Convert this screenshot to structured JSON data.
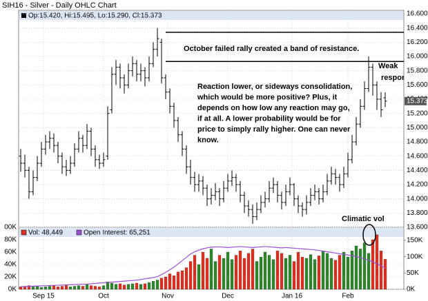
{
  "chart_data": {
    "type": "ohlc",
    "title": "SIH16 - Silver - Daily OHLC Chart",
    "price_legend": "Op:15.420, Hi:15.495, Lo:15.290, Cl:15.373",
    "volume_legend": "Vol: 48,449",
    "oi_legend": "Open Interest: 65,251",
    "last_price_label": "15.373",
    "xlim": [
      -0.5,
      92.5
    ],
    "xticks": [
      {
        "value": 5.5,
        "label": "Sep 15"
      },
      {
        "value": 20,
        "label": "Oct"
      },
      {
        "value": 35.5,
        "label": "Nov"
      },
      {
        "value": 50,
        "label": "Dec"
      },
      {
        "value": 65.5,
        "label": "Jan 16"
      },
      {
        "value": 79,
        "label": "Feb"
      }
    ],
    "ylim": [
      13.6,
      16.6
    ],
    "yticks": [
      {
        "value": 13.6,
        "label": "13.600"
      },
      {
        "value": 13.8,
        "label": "13.800"
      },
      {
        "value": 14.0,
        "label": "14.000"
      },
      {
        "value": 14.2,
        "label": "14.200"
      },
      {
        "value": 14.4,
        "label": "14.400"
      },
      {
        "value": 14.6,
        "label": "14.600"
      },
      {
        "value": 14.8,
        "label": "14.800"
      },
      {
        "value": 15.0,
        "label": "15.000"
      },
      {
        "value": 15.2,
        "label": "15.200"
      },
      {
        "value": 15.4,
        "label": "15.400"
      },
      {
        "value": 15.6,
        "label": "15.600"
      },
      {
        "value": 15.8,
        "label": "15.800"
      },
      {
        "value": 16.0,
        "label": "16.000"
      },
      {
        "value": 16.2,
        "label": "16.200"
      },
      {
        "value": 16.4,
        "label": "16.400"
      },
      {
        "value": 16.6,
        "label": "16.600"
      }
    ],
    "vol_ylim": [
      0,
      100000
    ],
    "vol_yticks": [
      {
        "value": 0,
        "label": "0K"
      },
      {
        "value": 20000,
        "label": "20K"
      },
      {
        "value": 40000,
        "label": "40K"
      },
      {
        "value": 60000,
        "label": "60K"
      },
      {
        "value": 80000,
        "label": "80K"
      },
      {
        "value": 100000,
        "label": "00K"
      }
    ],
    "y2lim": [
      0,
      190000
    ],
    "y2ticks": [
      {
        "value": 0,
        "label": "0K"
      },
      {
        "value": 50000,
        "label": "50K"
      },
      {
        "value": 100000,
        "label": "100K"
      },
      {
        "value": 150000,
        "label": "150K"
      }
    ],
    "bar_color": "#000000",
    "up_color": "#2a8a2a",
    "down_color": "#e03020",
    "oi_color": "#9b4fd6",
    "grid": true,
    "ohlc": [
      [
        14.6,
        14.7,
        14.38,
        14.5
      ],
      [
        14.5,
        14.62,
        14.3,
        14.4
      ],
      [
        14.4,
        14.45,
        14.0,
        14.1
      ],
      [
        14.1,
        14.4,
        14.05,
        14.3
      ],
      [
        14.3,
        14.6,
        14.25,
        14.5
      ],
      [
        14.5,
        14.8,
        14.45,
        14.7
      ],
      [
        14.7,
        14.9,
        14.62,
        14.8
      ],
      [
        14.8,
        14.95,
        14.7,
        14.85
      ],
      [
        14.85,
        14.92,
        14.65,
        14.75
      ],
      [
        14.75,
        14.8,
        14.5,
        14.6
      ],
      [
        14.6,
        14.65,
        14.35,
        14.45
      ],
      [
        14.45,
        14.55,
        14.32,
        14.4
      ],
      [
        14.4,
        14.6,
        14.35,
        14.5
      ],
      [
        14.5,
        14.78,
        14.45,
        14.7
      ],
      [
        14.7,
        14.95,
        14.65,
        14.85
      ],
      [
        14.85,
        14.9,
        14.65,
        14.75
      ],
      [
        14.75,
        15.05,
        14.7,
        14.95
      ],
      [
        14.95,
        15.0,
        14.6,
        14.7
      ],
      [
        14.7,
        14.75,
        14.45,
        14.55
      ],
      [
        14.55,
        14.62,
        14.42,
        14.5
      ],
      [
        14.5,
        14.65,
        14.45,
        14.55
      ],
      [
        14.6,
        15.3,
        14.55,
        15.2
      ],
      [
        15.25,
        15.85,
        15.2,
        15.75
      ],
      [
        15.75,
        15.95,
        15.6,
        15.85
      ],
      [
        15.85,
        15.9,
        15.55,
        15.7
      ],
      [
        15.7,
        15.75,
        15.48,
        15.6
      ],
      [
        15.6,
        15.9,
        15.55,
        15.8
      ],
      [
        15.8,
        16.0,
        15.72,
        15.9
      ],
      [
        15.9,
        15.95,
        15.65,
        15.75
      ],
      [
        15.75,
        15.9,
        15.65,
        15.8
      ],
      [
        15.8,
        15.85,
        15.58,
        15.7
      ],
      [
        15.7,
        16.0,
        15.65,
        15.9
      ],
      [
        15.9,
        16.2,
        15.85,
        16.1
      ],
      [
        16.1,
        16.4,
        16.0,
        16.25
      ],
      [
        16.2,
        16.25,
        15.62,
        15.7
      ],
      [
        15.7,
        15.75,
        15.4,
        15.5
      ],
      [
        15.5,
        15.55,
        15.2,
        15.3
      ],
      [
        15.3,
        15.35,
        15.0,
        15.1
      ],
      [
        15.1,
        15.15,
        14.8,
        14.9
      ],
      [
        14.9,
        14.95,
        14.6,
        14.7
      ],
      [
        14.7,
        14.75,
        14.35,
        14.45
      ],
      [
        14.45,
        14.55,
        14.2,
        14.3
      ],
      [
        14.3,
        14.38,
        14.1,
        14.2
      ],
      [
        14.2,
        14.35,
        14.1,
        14.25
      ],
      [
        14.25,
        14.32,
        14.05,
        14.15
      ],
      [
        14.15,
        14.2,
        13.9,
        14.0
      ],
      [
        14.0,
        14.15,
        13.92,
        14.05
      ],
      [
        14.05,
        14.22,
        13.98,
        14.1
      ],
      [
        14.1,
        14.15,
        13.9,
        14.0
      ],
      [
        14.0,
        14.25,
        13.95,
        14.15
      ],
      [
        14.15,
        14.35,
        14.1,
        14.25
      ],
      [
        14.25,
        14.4,
        14.18,
        14.3
      ],
      [
        14.3,
        14.35,
        14.1,
        14.2
      ],
      [
        14.2,
        14.25,
        13.95,
        14.05
      ],
      [
        14.05,
        14.1,
        13.8,
        13.9
      ],
      [
        13.9,
        13.98,
        13.75,
        13.85
      ],
      [
        13.85,
        13.92,
        13.65,
        13.75
      ],
      [
        13.75,
        13.95,
        13.7,
        13.85
      ],
      [
        13.85,
        14.05,
        13.8,
        13.95
      ],
      [
        13.95,
        14.1,
        13.88,
        14.0
      ],
      [
        14.0,
        14.25,
        13.95,
        14.15
      ],
      [
        14.15,
        14.3,
        14.08,
        14.2
      ],
      [
        14.2,
        14.25,
        13.95,
        14.05
      ],
      [
        14.05,
        14.1,
        13.85,
        13.95
      ],
      [
        13.95,
        14.2,
        13.9,
        14.1
      ],
      [
        14.1,
        14.3,
        14.05,
        14.2
      ],
      [
        14.2,
        14.22,
        13.9,
        14.0
      ],
      [
        14.0,
        14.05,
        13.8,
        13.9
      ],
      [
        13.9,
        13.95,
        13.75,
        13.85
      ],
      [
        13.85,
        14.05,
        13.78,
        13.95
      ],
      [
        13.95,
        14.15,
        13.9,
        14.05
      ],
      [
        14.05,
        14.2,
        13.98,
        14.1
      ],
      [
        14.1,
        14.15,
        13.92,
        14.0
      ],
      [
        14.0,
        14.2,
        13.95,
        14.1
      ],
      [
        14.1,
        14.35,
        14.05,
        14.25
      ],
      [
        14.25,
        14.45,
        14.2,
        14.35
      ],
      [
        14.35,
        14.42,
        14.2,
        14.3
      ],
      [
        14.3,
        14.35,
        14.1,
        14.2
      ],
      [
        14.2,
        14.45,
        14.15,
        14.35
      ],
      [
        14.35,
        14.65,
        14.3,
        14.55
      ],
      [
        14.55,
        14.9,
        14.5,
        14.8
      ],
      [
        14.8,
        15.15,
        14.75,
        15.05
      ],
      [
        15.05,
        15.4,
        15.0,
        15.3
      ],
      [
        15.3,
        15.65,
        15.25,
        15.55
      ],
      [
        15.55,
        16.0,
        15.5,
        15.85
      ],
      [
        15.85,
        15.9,
        15.45,
        15.6
      ],
      [
        15.6,
        15.65,
        15.25,
        15.4
      ],
      [
        15.4,
        15.5,
        15.15,
        15.25
      ],
      [
        15.42,
        15.495,
        15.29,
        15.373
      ]
    ],
    "volume": [
      4000,
      5000,
      6000,
      4000,
      5000,
      3000,
      4000,
      5000,
      6000,
      4000,
      5000,
      7000,
      4000,
      5000,
      6000,
      5000,
      8000,
      6000,
      5000,
      4000,
      6000,
      12000,
      10000,
      8000,
      9000,
      7000,
      8000,
      9000,
      10000,
      8000,
      9000,
      11000,
      13000,
      15000,
      18000,
      20000,
      25000,
      22000,
      28000,
      30000,
      35000,
      45000,
      55000,
      40000,
      60000,
      50000,
      65000,
      45000,
      55000,
      50000,
      60000,
      48000,
      55000,
      62000,
      50000,
      58000,
      65000,
      45000,
      52000,
      60000,
      55000,
      48000,
      62000,
      58000,
      50000,
      55000,
      45000,
      60000,
      52000,
      50000,
      56000,
      48000,
      54000,
      62000,
      58000,
      50000,
      47000,
      55000,
      60000,
      52000,
      62000,
      70000,
      65000,
      75000,
      58000,
      80000,
      88000,
      62000,
      48449
    ],
    "open_interest": [
      8000,
      8500,
      9000,
      9500,
      10000,
      10500,
      11000,
      11500,
      12000,
      12500,
      13000,
      13500,
      14000,
      14500,
      15000,
      15500,
      16000,
      17000,
      18000,
      19000,
      20000,
      21000,
      22000,
      23000,
      24000,
      25000,
      26000,
      27000,
      28000,
      30000,
      32000,
      34000,
      36000,
      39000,
      45000,
      52000,
      60000,
      68000,
      78000,
      88000,
      98000,
      108000,
      115000,
      120000,
      124000,
      127000,
      129000,
      130000,
      130000,
      129000,
      128000,
      129000,
      130000,
      131000,
      130000,
      129000,
      128000,
      129000,
      130000,
      131000,
      130000,
      129000,
      128000,
      127000,
      128000,
      127000,
      126000,
      125000,
      124000,
      123000,
      122000,
      121000,
      119000,
      117000,
      115000,
      113000,
      111000,
      109000,
      107000,
      105000,
      103000,
      100000,
      97000,
      93000,
      89000,
      84000,
      78000,
      72000,
      65251
    ],
    "resistance_lines": [
      16.34,
      15.93
    ],
    "annotations": {
      "band": "October failed rally created a band of resistance.",
      "reaction": [
        "Reaction lower, or sideways consolidation,",
        "which would be more positive? Plus, it",
        "depends on how low any reaction may go,",
        "if at all.  A lower probability would be for",
        "price to simply rally higher. One can never",
        "know."
      ],
      "weak": [
        "Weak",
        "response"
      ],
      "climatic": "Climatic vol"
    }
  }
}
